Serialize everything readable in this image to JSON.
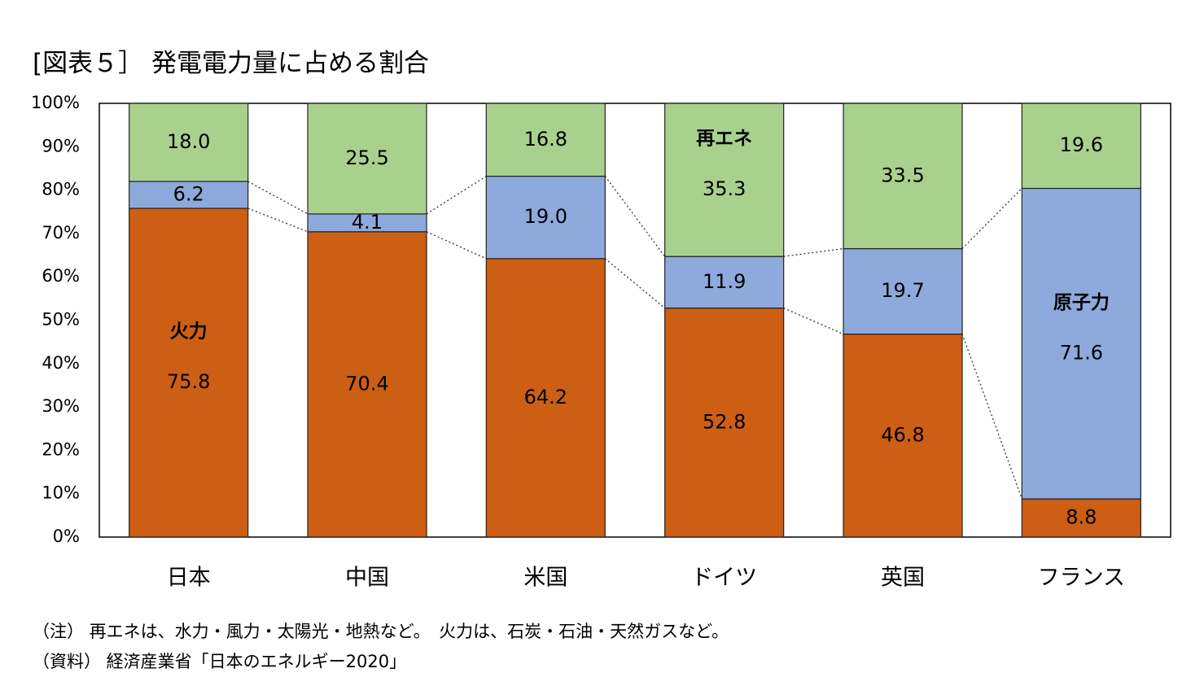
{
  "title": "[図表５］ 発電電力量に占める割合",
  "notes": {
    "note1": "（注） 再エネは、水力・風力・太陽光・地熱など。　火力は、石炭・石油・天然ガスなど。",
    "note2": "（資料） 経済産業省「日本のエネルギー2020」"
  },
  "chart_data": {
    "type": "bar",
    "stacked": true,
    "categories": [
      "日本",
      "中国",
      "米国",
      "ドイツ",
      "英国",
      "フランス"
    ],
    "series": [
      {
        "name": "火力",
        "color": "#cc5f14",
        "values": [
          75.8,
          70.4,
          64.2,
          52.8,
          46.8,
          8.8
        ]
      },
      {
        "name": "原子力",
        "color": "#8ea9db",
        "values": [
          6.2,
          4.1,
          19.0,
          11.9,
          19.7,
          71.6
        ]
      },
      {
        "name": "再エネ",
        "color": "#a9d18e",
        "values": [
          18.0,
          25.5,
          16.8,
          35.3,
          33.5,
          19.6
        ]
      }
    ],
    "value_labels": [
      [
        "75.8",
        "70.4",
        "64.2",
        "52.8",
        "46.8",
        "8.8"
      ],
      [
        "6.2",
        "4.1",
        "19.0",
        "11.9",
        "19.7",
        "71.6"
      ],
      [
        "18.0",
        "25.5",
        "16.8",
        "35.3",
        "33.5",
        "19.6"
      ]
    ],
    "series_labels": [
      {
        "text": "火力",
        "series": 0,
        "category": 0
      },
      {
        "text": "原子力",
        "series": 1,
        "category": 5
      },
      {
        "text": "再エネ",
        "series": 2,
        "category": 3
      }
    ],
    "y_ticks": [
      "0%",
      "10%",
      "20%",
      "30%",
      "40%",
      "50%",
      "60%",
      "70%",
      "80%",
      "90%",
      "100%"
    ],
    "ylim": [
      0,
      100
    ],
    "series_lines": "dotted",
    "grid": false,
    "legend": "none"
  }
}
